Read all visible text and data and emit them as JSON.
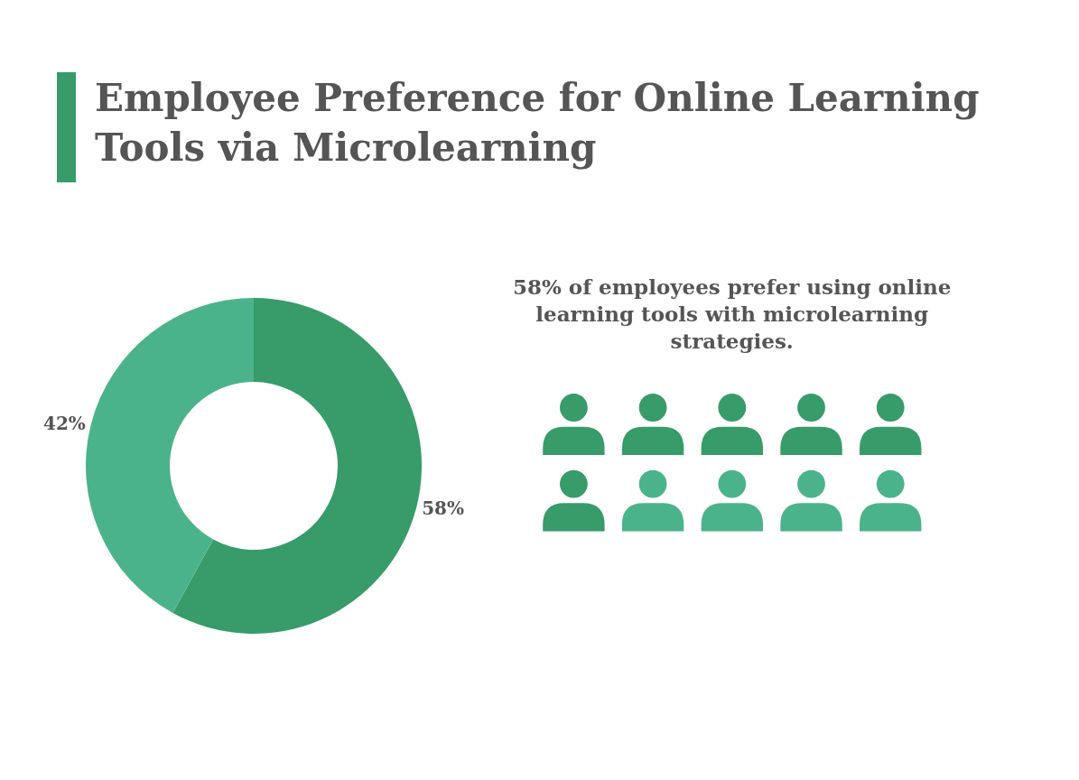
{
  "chart_data": {
    "type": "donut",
    "title": "Employee Preference for Online Learning Tools via Microlearning",
    "categories": [
      null,
      null
    ],
    "values": [
      58,
      42
    ],
    "colors": [
      "#379b6a",
      "#4bb38c"
    ],
    "value_labels": [
      "58%",
      "42%"
    ],
    "annotations": [
      "58% of employees prefer using online learning tools with microlearning strategies."
    ],
    "legend": false
  }
}
